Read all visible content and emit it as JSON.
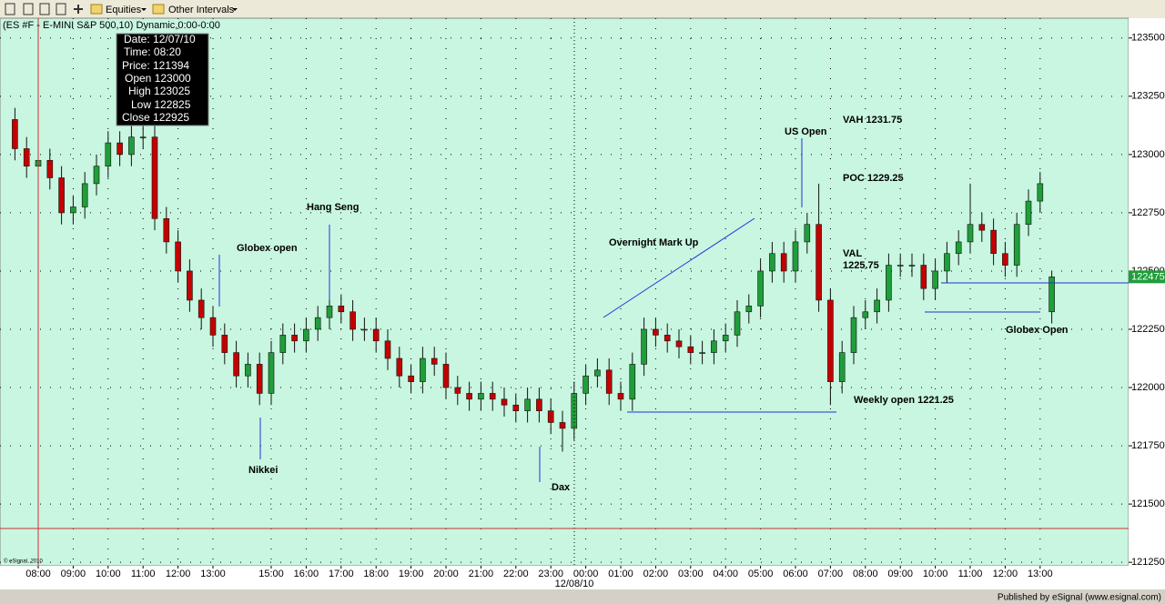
{
  "toolbar": {
    "menus": [
      "Equities",
      "Other Intervals"
    ]
  },
  "chart_data": {
    "type": "candlestick",
    "title": "(ES #F - E-MINI S&P 500,10) Dynamic,0:00-0:00",
    "categories": [
      null,
      null,
      "08:00",
      null,
      null,
      "09:00",
      null,
      null,
      "10:00",
      null,
      null,
      "11:00",
      null,
      null,
      "12:00",
      null,
      null,
      "13:00",
      null,
      null,
      null,
      null,
      "15:00",
      null,
      null,
      "16:00",
      null,
      null,
      "17:00",
      null,
      null,
      "18:00",
      null,
      null,
      "19:00",
      null,
      null,
      "20:00",
      null,
      null,
      "21:00",
      null,
      null,
      "22:00",
      null,
      null,
      "23:00",
      null,
      null,
      "00:00",
      null,
      null,
      "01:00",
      null,
      null,
      "02:00",
      null,
      null,
      "03:00",
      null,
      null,
      "04:00",
      null,
      null,
      "05:00",
      null,
      null,
      "06:00",
      null,
      null,
      "07:00",
      null,
      null,
      "08:00",
      null,
      null,
      "09:00",
      null,
      null,
      "10:00",
      null,
      null,
      "11:00",
      null,
      null,
      "12:00",
      null,
      null,
      "13:00",
      null
    ],
    "date_label": "12/08/10",
    "open": [
      123150,
      123025,
      122950,
      122975,
      122900,
      122750,
      122775,
      122875,
      122950,
      123050,
      123000,
      123075,
      123075,
      122725,
      122625,
      122500,
      122375,
      122300,
      122225,
      122150,
      122050,
      122100,
      121975,
      122150,
      122225,
      122200,
      122250,
      122300,
      122350,
      122325,
      122250,
      122250,
      122200,
      122125,
      122050,
      122025,
      122125,
      122100,
      122000,
      121975,
      121950,
      121975,
      121950,
      121925,
      121900,
      121950,
      121900,
      121850,
      121825,
      121975,
      122050,
      122075,
      121975,
      121950,
      122100,
      122250,
      122225,
      122200,
      122175,
      122150,
      122150,
      122200,
      122225,
      122325,
      122350,
      122500,
      122575,
      122500,
      122625,
      122700,
      122375,
      122025,
      122150,
      122300,
      122325,
      122375,
      122525,
      122525,
      122525,
      122425,
      122500,
      122575,
      122625,
      122700,
      122675,
      122575,
      122525,
      122700,
      122800,
      122325
    ],
    "high": [
      123200,
      123075,
      123025,
      123025,
      122950,
      122825,
      122925,
      123000,
      123100,
      123100,
      123125,
      123125,
      123175,
      122775,
      122675,
      122550,
      122425,
      122350,
      122275,
      122200,
      122150,
      122150,
      122200,
      122275,
      122275,
      122300,
      122350,
      122400,
      122400,
      122375,
      122300,
      122300,
      122250,
      122175,
      122100,
      122175,
      122175,
      122150,
      122050,
      122025,
      122025,
      122025,
      122000,
      121975,
      122000,
      122000,
      121950,
      121900,
      122025,
      122100,
      122125,
      122125,
      122025,
      122150,
      122300,
      122300,
      122275,
      122250,
      122225,
      122200,
      122250,
      122275,
      122375,
      122400,
      122550,
      122625,
      122625,
      122675,
      122750,
      122875,
      122425,
      122200,
      122350,
      122375,
      122425,
      122575,
      122575,
      122575,
      122575,
      122550,
      122625,
      122675,
      122875,
      122750,
      122725,
      122625,
      122750,
      122850,
      122925,
      122500
    ],
    "low": [
      122975,
      122900,
      122900,
      122850,
      122700,
      122700,
      122725,
      122825,
      122900,
      122950,
      122950,
      123025,
      122675,
      122575,
      122450,
      122325,
      122250,
      122175,
      122100,
      122000,
      122000,
      121925,
      121925,
      122100,
      122150,
      122150,
      122200,
      122250,
      122275,
      122200,
      122200,
      122150,
      122075,
      122000,
      121975,
      121975,
      122050,
      121950,
      121925,
      121900,
      121900,
      121900,
      121875,
      121850,
      121850,
      121850,
      121800,
      121725,
      121775,
      121925,
      122000,
      121925,
      121900,
      121900,
      122050,
      122175,
      122150,
      122125,
      122100,
      122100,
      122100,
      122150,
      122175,
      122275,
      122300,
      122450,
      122450,
      122450,
      122575,
      122325,
      121925,
      121975,
      122100,
      122250,
      122275,
      122325,
      122475,
      122475,
      122375,
      122375,
      122450,
      122525,
      122575,
      122625,
      122525,
      122475,
      122475,
      122650,
      122750,
      122275
    ],
    "close": [
      123025,
      122950,
      122975,
      122900,
      122750,
      122775,
      122875,
      122950,
      123050,
      123000,
      123075,
      123075,
      122725,
      122625,
      122500,
      122375,
      122300,
      122225,
      122150,
      122050,
      122100,
      121975,
      122150,
      122225,
      122200,
      122250,
      122300,
      122350,
      122325,
      122250,
      122250,
      122200,
      122125,
      122050,
      122025,
      122125,
      122100,
      122000,
      121975,
      121950,
      121975,
      121950,
      121925,
      121900,
      121950,
      121900,
      121850,
      121825,
      121975,
      122050,
      122075,
      121975,
      121950,
      122100,
      122250,
      122225,
      122200,
      122175,
      122150,
      122150,
      122200,
      122225,
      122325,
      122350,
      122500,
      122575,
      122500,
      122625,
      122700,
      122375,
      122025,
      122150,
      122300,
      122325,
      122375,
      122525,
      122525,
      122525,
      122425,
      122500,
      122575,
      122625,
      122700,
      122675,
      122575,
      122525,
      122700,
      122800,
      122875,
      122475
    ],
    "up_color": "#1f9e3a",
    "down_color": "#c40000",
    "background": "#c8f6e0",
    "ylim": [
      121235,
      123585
    ],
    "yticks": [
      121250,
      121500,
      121750,
      122000,
      122250,
      122500,
      122750,
      123000,
      123250,
      123500
    ],
    "grid": true,
    "annotations": [
      "Globex open",
      "Hang Seng",
      "Nikkei",
      "Dax",
      "Overnight Mark Up",
      "US Open",
      "VAH 1231.75",
      "POC 1229.25",
      "VAL",
      "1225.75",
      "Weekly open 1221.25",
      "Globex Open"
    ],
    "watermark": "© eSignal, 2010"
  },
  "tooltip": {
    "lines": [
      "Date: 12/07/10",
      "Time: 08:20",
      "Price: 121394",
      "Open 123000",
      "High 123025",
      "Low 122825",
      "Close 122925"
    ]
  },
  "footer": "Published by eSignal (www.esignal.com)"
}
